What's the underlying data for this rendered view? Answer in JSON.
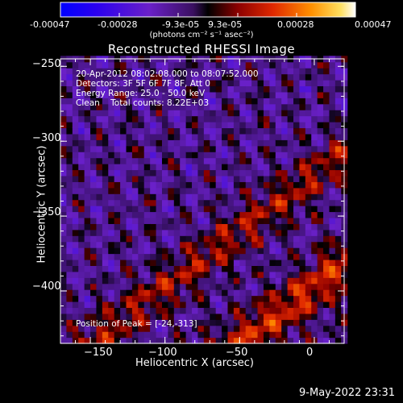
{
  "colorbar": {
    "ticks": [
      "-0.00047",
      "-0.00028",
      "-9.3e-05",
      "9.3e-05",
      "0.00028",
      "0.00047"
    ],
    "units": "(photons cm⁻² s⁻¹ asec⁻²)"
  },
  "title": "Reconstructed RHESSI Image",
  "info_lines": [
    "20-Apr-2012 08:02:08.000 to 08:07:52.000",
    "Detectors: 3F 5F 6F 7F 8F, Att 0",
    "Energy Range: 25.0 - 50.0 keV",
    "Clean    Total counts: 8.22E+03"
  ],
  "peak_text": "Position of Peak = [-24,-313]",
  "footer_text": "9-May-2022 23:31",
  "chart_data": {
    "type": "heatmap",
    "title": "Reconstructed RHESSI Image",
    "xlabel": "Heliocentric X (arcsec)",
    "ylabel": "Heliocentric Y (arcsec)",
    "xlim": [
      -170,
      20
    ],
    "ylim": [
      -435,
      -245
    ],
    "x_ticks": [
      -150,
      -100,
      -50,
      0
    ],
    "x_tick_labels": [
      "−150",
      "−100",
      "−50",
      "0"
    ],
    "y_ticks": [
      -250,
      -300,
      -350,
      -400
    ],
    "y_tick_labels": [
      "−250",
      "−300",
      "−350",
      "−400"
    ],
    "color_range": [
      -0.00047,
      0.00047
    ],
    "colormap": [
      "#0000ff",
      "#4000e0",
      "#7a2ab8",
      "#5a2a9a",
      "#000000",
      "#8a0000",
      "#e02000",
      "#ff8000",
      "#ffd040",
      "#ffffff"
    ],
    "peak": [
      -24,
      -313
    ]
  }
}
